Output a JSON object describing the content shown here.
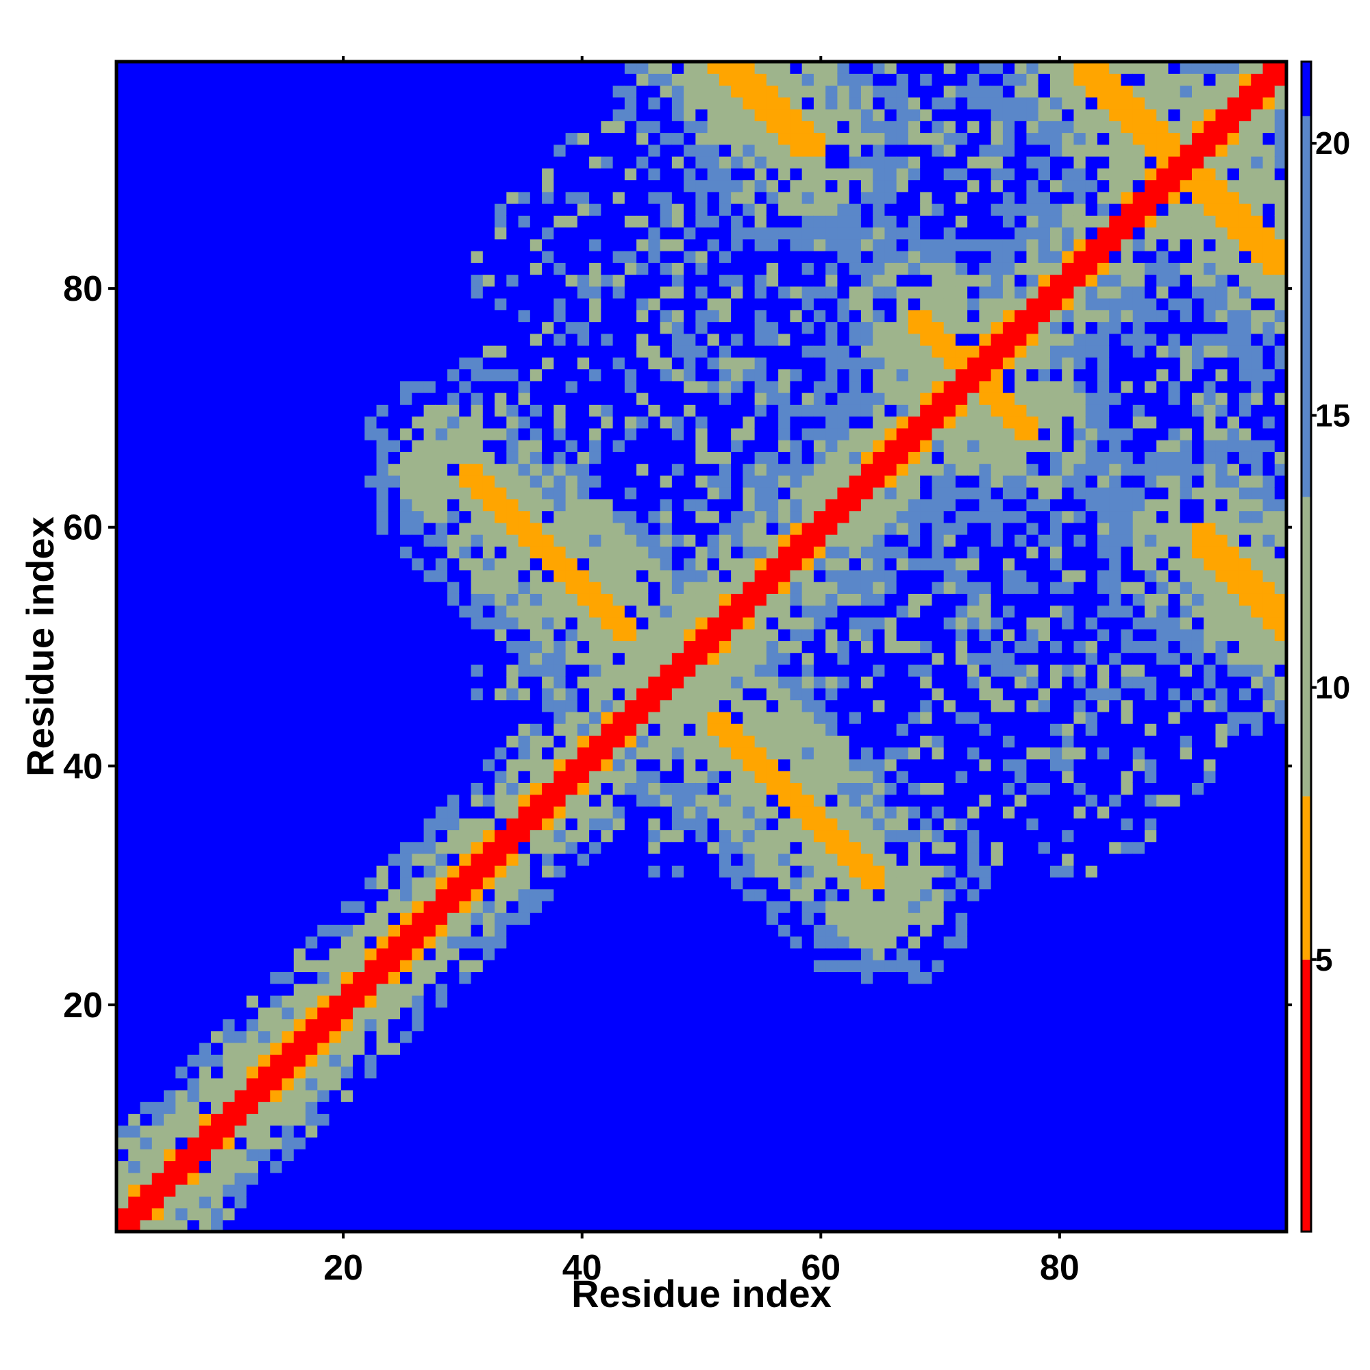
{
  "chart_data": {
    "type": "heatmap",
    "title": "",
    "xlabel": "Residue index",
    "ylabel": "Residue index",
    "xlim": [
      1,
      99
    ],
    "ylim": [
      1,
      99
    ],
    "x_ticks": [
      20,
      40,
      60,
      80
    ],
    "y_ticks": [
      20,
      40,
      60,
      80
    ],
    "x_tick_labels": [
      "20",
      "40",
      "60",
      "80"
    ],
    "y_tick_labels": [
      "20",
      "40",
      "60",
      "80"
    ],
    "n_residues": 99,
    "value_description": "pairwise residue distance (contact map)",
    "colorbar": {
      "range": [
        0,
        21.5
      ],
      "ticks": [
        5,
        10,
        15,
        20
      ],
      "tick_labels": [
        "5",
        "10",
        "15",
        "20"
      ],
      "bands": [
        {
          "from": 0,
          "to": 5,
          "color": "#ff0000"
        },
        {
          "from": 5,
          "to": 8,
          "color": "#ffa500"
        },
        {
          "from": 8,
          "to": 13.5,
          "color": "#9eb48c"
        },
        {
          "from": 13.5,
          "to": 20.5,
          "color": "#5a87c9"
        },
        {
          "from": 20.5,
          "to": 21.5,
          "color": "#0000ff"
        }
      ]
    },
    "contact_features": [
      {
        "kind": "main-diagonal",
        "from": [
          1,
          1
        ],
        "to": [
          99,
          99
        ],
        "value": 2
      },
      {
        "kind": "anti-parallel",
        "center": [
          37,
          58
        ],
        "orientation": "anti",
        "length": 20
      },
      {
        "kind": "anti-parallel",
        "center": [
          58,
          37
        ],
        "orientation": "anti",
        "length": 20
      },
      {
        "kind": "anti-parallel",
        "center": [
          55,
          96
        ],
        "orientation": "anti",
        "length": 10
      },
      {
        "kind": "anti-parallel",
        "center": [
          86,
          95
        ],
        "orientation": "anti",
        "length": 10
      },
      {
        "kind": "anti-parallel",
        "center": [
          96,
          86
        ],
        "orientation": "anti",
        "length": 12
      },
      {
        "kind": "anti-parallel",
        "center": [
          96,
          56
        ],
        "orientation": "anti",
        "length": 10
      },
      {
        "kind": "anti-parallel",
        "center": [
          72,
          74
        ],
        "orientation": "anti",
        "length": 10
      }
    ],
    "legend": "colorbar right",
    "grid": false
  },
  "colors": {
    "far": "#0000ff",
    "mid_far": "#5a87c9",
    "mid": "#9eb48c",
    "near": "#ffa500",
    "contact": "#ff0000",
    "frame": "#000000"
  }
}
